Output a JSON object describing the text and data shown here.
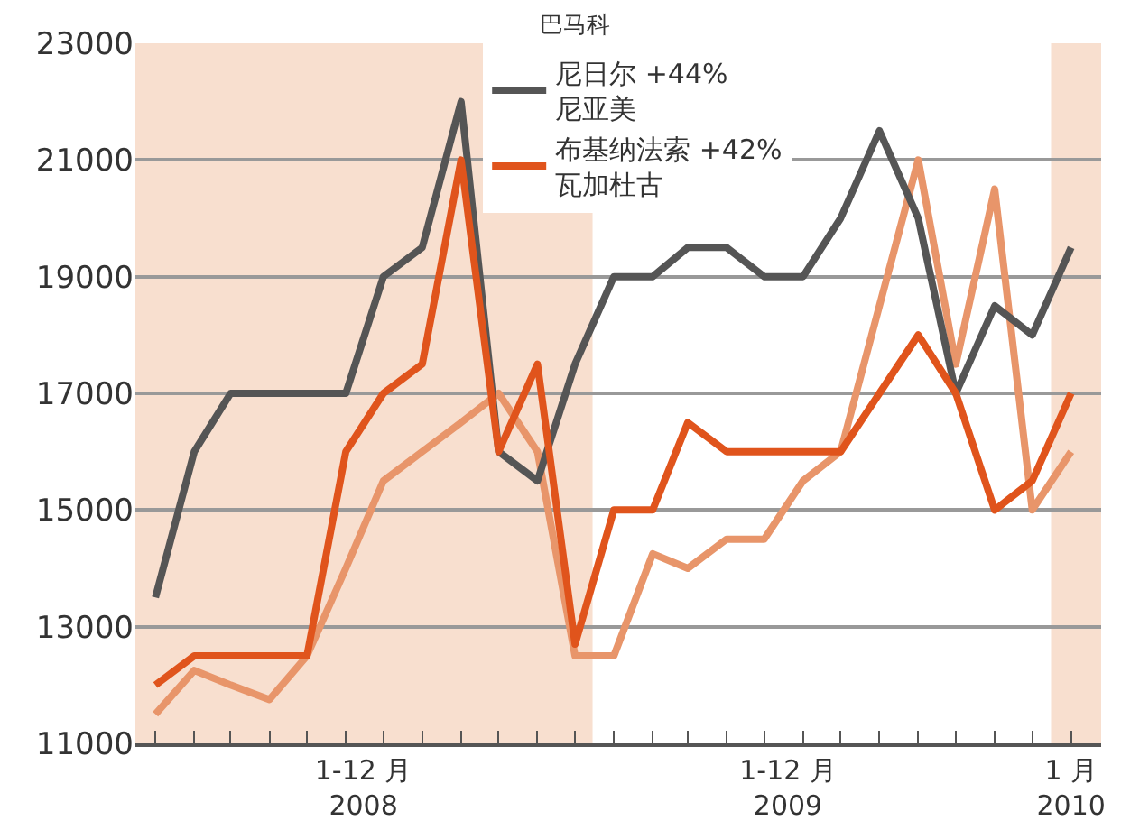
{
  "chart_data": {
    "type": "line",
    "x": [
      "2008-01",
      "2008-02",
      "2008-03",
      "2008-04",
      "2008-05",
      "2008-06",
      "2008-07",
      "2008-08",
      "2008-09",
      "2008-10",
      "2008-11",
      "2008-12",
      "2009-01",
      "2009-02",
      "2009-03",
      "2009-04",
      "2009-05",
      "2009-06",
      "2009-07",
      "2009-08",
      "2009-09",
      "2009-10",
      "2009-11",
      "2009-12",
      "2010-01"
    ],
    "series": [
      {
        "color": "#e8956a",
        "values": [
          11500,
          12250,
          12000,
          11750,
          12500,
          14000,
          15500,
          16000,
          16500,
          17000,
          16000,
          12500,
          12500,
          14250,
          14000,
          14500,
          14500,
          15500,
          16000,
          18500,
          21000,
          17500,
          20500,
          15000,
          16000
        ]
      },
      {
        "name": "尼日尔 +44%\n尼亚美",
        "color": "#555555",
        "values": [
          13500,
          16000,
          17000,
          17000,
          17000,
          17000,
          19000,
          19500,
          22000,
          16000,
          15500,
          17500,
          19000,
          19000,
          19500,
          19500,
          19000,
          19000,
          20000,
          21500,
          20000,
          17000,
          18500,
          18000,
          19500
        ]
      },
      {
        "name": "布基纳法索 +42%\n瓦加杜古",
        "color": "#e0541c",
        "values": [
          12000,
          12500,
          12500,
          12500,
          12500,
          16000,
          17000,
          17500,
          21000,
          16000,
          17500,
          12700,
          15000,
          15000,
          16500,
          16000,
          16000,
          16000,
          16000,
          17000,
          18000,
          17000,
          15000,
          15500,
          17000
        ]
      }
    ],
    "annotations": [
      "巴马科"
    ],
    "xlim": [
      "2007-12-16",
      "2010-01-25"
    ],
    "xticks": [
      {
        "value": "2008-01",
        "label": null
      },
      {
        "value": "2008-02",
        "label": null
      },
      {
        "value": "2008-03",
        "label": null
      },
      {
        "value": "2008-04",
        "label": null
      },
      {
        "value": "2008-05",
        "label": null
      },
      {
        "value": "2008-06",
        "label": null
      },
      {
        "value": "2008-07",
        "label": null
      },
      {
        "value": "2008-08",
        "label": null
      },
      {
        "value": "2008-09",
        "label": null
      },
      {
        "value": "2008-10",
        "label": null
      },
      {
        "value": "2008-11",
        "label": null
      },
      {
        "value": "2008-12",
        "label": null
      },
      {
        "value": "2009-01",
        "label": null
      },
      {
        "value": "2009-02",
        "label": null
      },
      {
        "value": "2009-03",
        "label": null
      },
      {
        "value": "2009-04",
        "label": null
      },
      {
        "value": "2009-05",
        "label": null
      },
      {
        "value": "2009-06",
        "label": null
      },
      {
        "value": "2009-07",
        "label": null
      },
      {
        "value": "2009-08",
        "label": null
      },
      {
        "value": "2009-09",
        "label": null
      },
      {
        "value": "2009-10",
        "label": null
      },
      {
        "value": "2009-11",
        "label": null
      },
      {
        "value": "2009-12",
        "label": null
      },
      {
        "value": "2010-01",
        "label": null
      },
      {
        "value": "2008-06-15",
        "label": "1-12 月\n2008"
      },
      {
        "value": "2009-05-20",
        "label": "1-12 月\n2009"
      },
      {
        "value": "2010-01-01",
        "label": "1 月\n2010"
      }
    ],
    "ylim": [
      11000,
      23000
    ],
    "yticks": [
      11000,
      13000,
      15000,
      17000,
      19000,
      21000,
      23000
    ],
    "grid": "y",
    "legend": "top",
    "bands": [
      {
        "axis": "x",
        "from": "2007-12-16",
        "to": "2008-12-15",
        "color": "#f8dfcf"
      },
      {
        "axis": "x",
        "from": "2009-12-16",
        "to": "2010-01-25",
        "color": "#f8dfcf"
      }
    ]
  }
}
